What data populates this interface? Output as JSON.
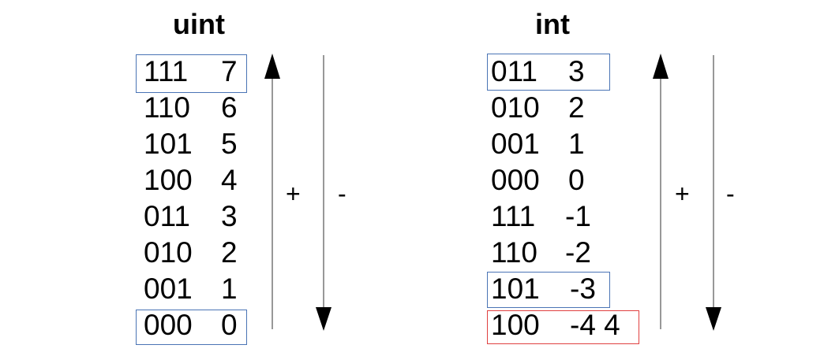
{
  "colors": {
    "highlight_box": "#4a74b5",
    "overflow_box": "#e04040"
  },
  "panels": {
    "uint": {
      "title": "uint",
      "rows": [
        {
          "bits": "111",
          "value": "7"
        },
        {
          "bits": "110",
          "value": "6"
        },
        {
          "bits": "101",
          "value": "5"
        },
        {
          "bits": "100",
          "value": "4"
        },
        {
          "bits": "011",
          "value": "3"
        },
        {
          "bits": "010",
          "value": "2"
        },
        {
          "bits": "001",
          "value": "1"
        },
        {
          "bits": "000",
          "value": "0"
        }
      ],
      "plus": "+",
      "minus": "-"
    },
    "int": {
      "title": "int",
      "rows": [
        {
          "bits": "011",
          "value": "3"
        },
        {
          "bits": "010",
          "value": "2"
        },
        {
          "bits": "001",
          "value": "1"
        },
        {
          "bits": "000",
          "value": "0"
        },
        {
          "bits": "111",
          "value": "-1"
        },
        {
          "bits": "110",
          "value": "-2"
        },
        {
          "bits": "101",
          "value": "-3"
        },
        {
          "bits": "100",
          "value": "-4 4"
        }
      ],
      "plus": "+",
      "minus": "-"
    }
  }
}
